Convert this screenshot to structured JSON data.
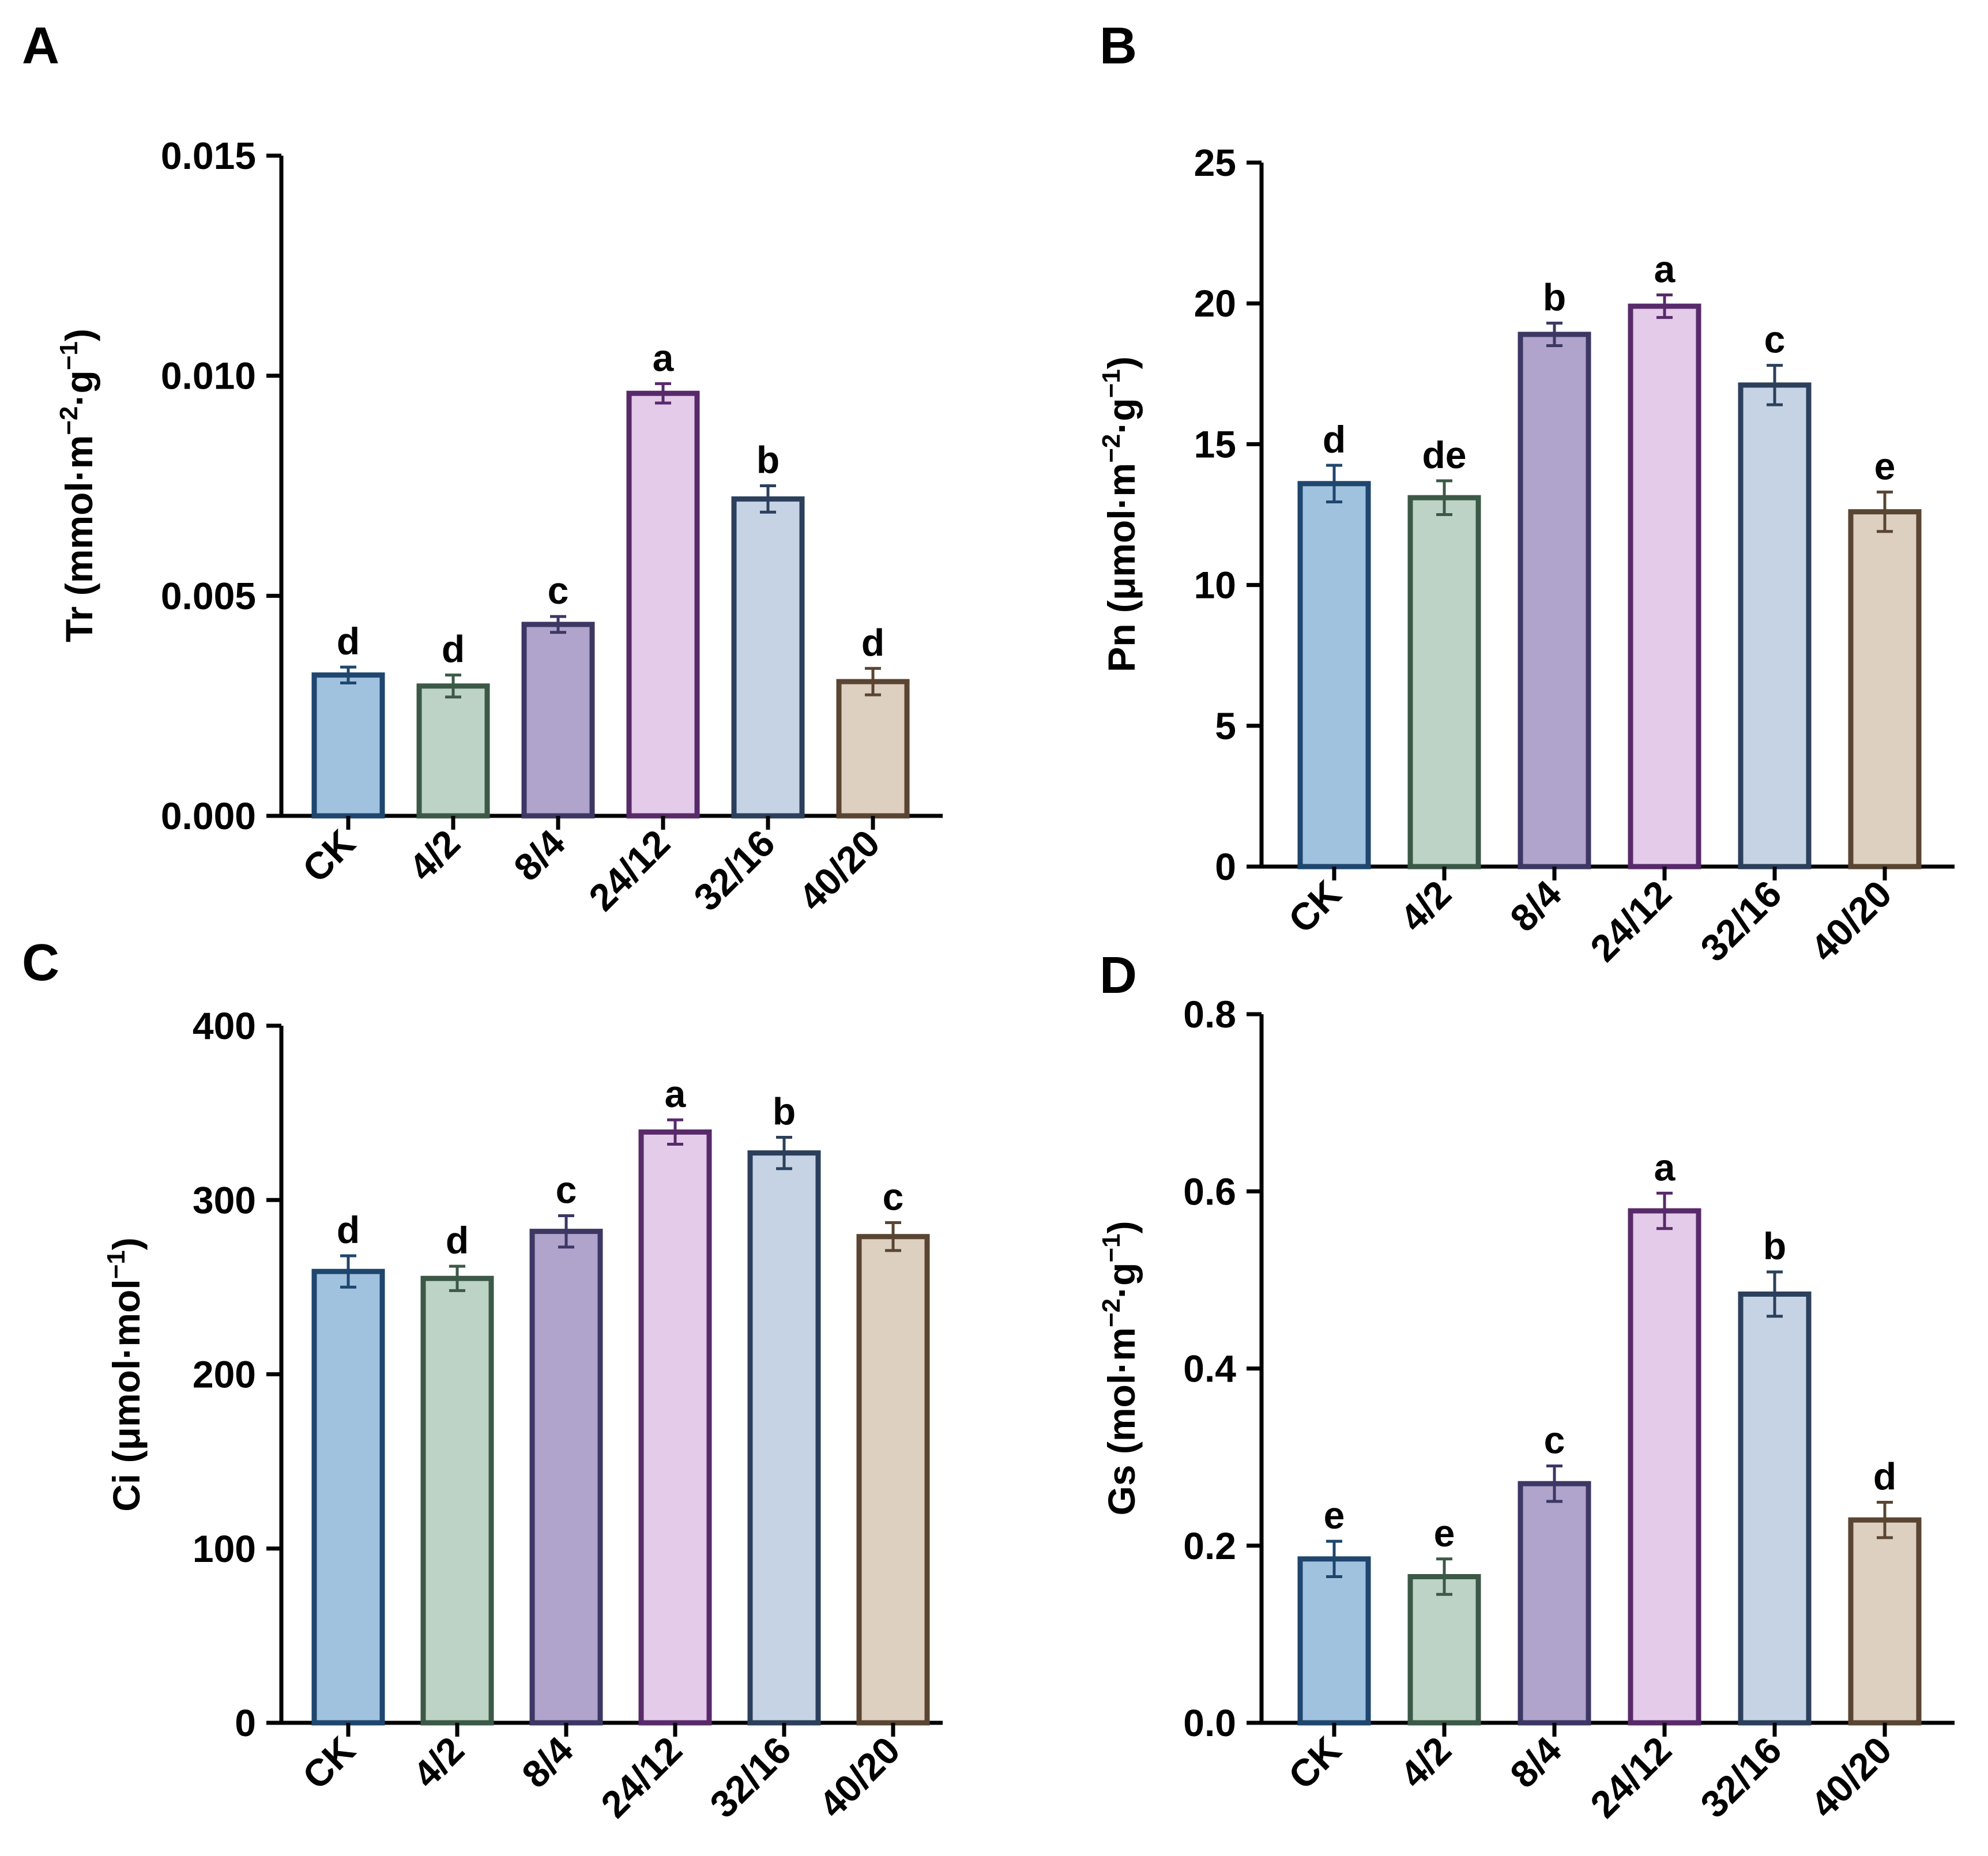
{
  "figure": {
    "colors": {
      "CK": {
        "fill": "#a1c2df",
        "stroke": "#1f466e"
      },
      "4/2": {
        "fill": "#bdd3c5",
        "stroke": "#3c5947"
      },
      "8/4": {
        "fill": "#b0a3cc",
        "stroke": "#3c3763"
      },
      "24/12": {
        "fill": "#e4cbe9",
        "stroke": "#582a6a"
      },
      "32/16": {
        "fill": "#c5d3e4",
        "stroke": "#2c405c"
      },
      "40/20": {
        "fill": "#ddd0c1",
        "stroke": "#5a4532"
      }
    }
  },
  "chart_data": [
    {
      "panel": "A",
      "type": "bar",
      "ylabel": "Tr (mmol·m−2·g−1)",
      "ylabel_parts": [
        [
          "Tr (mmol·m",
          false
        ],
        [
          "−2",
          true
        ],
        [
          "·g",
          false
        ],
        [
          "−1",
          true
        ],
        [
          ")",
          false
        ]
      ],
      "ylim": [
        0,
        0.015
      ],
      "yticks": [
        "0.000",
        "0.005",
        "0.010",
        "0.015"
      ],
      "categories": [
        "CK",
        "4/2",
        "8/4",
        "24/12",
        "32/16",
        "40/20"
      ],
      "values": [
        0.0032,
        0.00295,
        0.00435,
        0.0096,
        0.0072,
        0.00305
      ],
      "errors": [
        0.00018,
        0.00025,
        0.00018,
        0.00022,
        0.0003,
        0.0003
      ],
      "significance": [
        "d",
        "d",
        "c",
        "a",
        "b",
        "d"
      ]
    },
    {
      "panel": "B",
      "type": "bar",
      "ylabel": "Pn (μmol·m−2·g−1)",
      "ylabel_parts": [
        [
          "Pn (μmol·m",
          false
        ],
        [
          "−2",
          true
        ],
        [
          "·g",
          false
        ],
        [
          "−1",
          true
        ],
        [
          ")",
          false
        ]
      ],
      "ylim": [
        0,
        25
      ],
      "yticks": [
        "0",
        "5",
        "10",
        "15",
        "20",
        "25"
      ],
      "categories": [
        "CK",
        "4/2",
        "8/4",
        "24/12",
        "32/16",
        "40/20"
      ],
      "values": [
        13.6,
        13.1,
        18.9,
        19.9,
        17.1,
        12.6
      ],
      "errors": [
        0.65,
        0.6,
        0.4,
        0.4,
        0.7,
        0.7
      ],
      "significance": [
        "d",
        "de",
        "b",
        "a",
        "c",
        "e"
      ]
    },
    {
      "panel": "C",
      "type": "bar",
      "ylabel": "Ci (μmol·mol−1)",
      "ylabel_parts": [
        [
          "Ci (μmol·mol",
          false
        ],
        [
          "−1",
          true
        ],
        [
          ")",
          false
        ]
      ],
      "ylim": [
        0,
        400
      ],
      "yticks": [
        "0",
        "100",
        "200",
        "300",
        "400"
      ],
      "categories": [
        "CK",
        "4/2",
        "8/4",
        "24/12",
        "32/16",
        "40/20"
      ],
      "values": [
        259,
        255,
        282,
        339,
        327,
        279
      ],
      "errors": [
        9,
        7,
        9,
        7,
        9,
        8
      ],
      "significance": [
        "d",
        "d",
        "c",
        "a",
        "b",
        "c"
      ]
    },
    {
      "panel": "D",
      "type": "bar",
      "ylabel": "Gs (mol·m−2·g−1)",
      "ylabel_parts": [
        [
          "Gs (mol·m",
          false
        ],
        [
          "−2",
          true
        ],
        [
          "·g",
          false
        ],
        [
          "−1",
          true
        ],
        [
          ")",
          false
        ]
      ],
      "ylim": [
        0,
        0.8
      ],
      "yticks": [
        "0.0",
        "0.2",
        "0.4",
        "0.6",
        "0.8"
      ],
      "categories": [
        "CK",
        "4/2",
        "8/4",
        "24/12",
        "32/16",
        "40/20"
      ],
      "values": [
        0.185,
        0.165,
        0.27,
        0.578,
        0.484,
        0.229
      ],
      "errors": [
        0.02,
        0.02,
        0.02,
        0.02,
        0.025,
        0.02
      ],
      "significance": [
        "e",
        "e",
        "c",
        "a",
        "b",
        "d"
      ]
    }
  ]
}
